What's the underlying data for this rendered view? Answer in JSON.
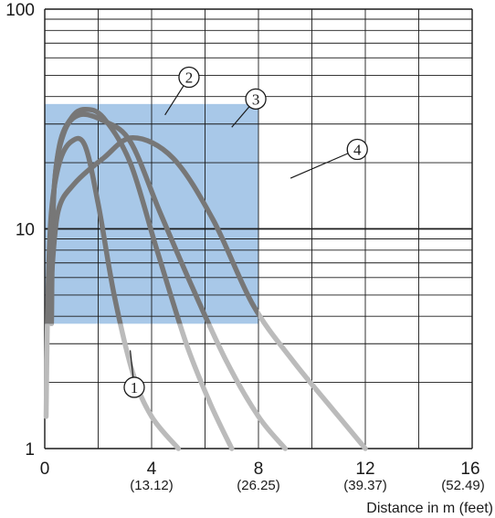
{
  "chart_data": {
    "type": "line",
    "title": "",
    "xlabel": "Distance in m (feet)",
    "ylabel": "",
    "x_scale": "linear",
    "y_scale": "log",
    "xlim": [
      0,
      16
    ],
    "ylim": [
      1,
      100
    ],
    "grid": true,
    "x_ticks": [
      {
        "value": 0,
        "label": "0",
        "sub": ""
      },
      {
        "value": 4,
        "label": "4",
        "sub": "(13.12)"
      },
      {
        "value": 8,
        "label": "8",
        "sub": "(26.25)"
      },
      {
        "value": 12,
        "label": "12",
        "sub": "(39.37)"
      },
      {
        "value": 16,
        "label": "16",
        "sub": "(52.49)"
      }
    ],
    "y_ticks": [
      {
        "value": 1,
        "label": "1"
      },
      {
        "value": 10,
        "label": "10"
      },
      {
        "value": 100,
        "label": "100"
      }
    ],
    "highlight_region": {
      "x": [
        0,
        8
      ],
      "y": [
        3.7,
        37
      ],
      "color": "#a8c8e8"
    },
    "colors": {
      "in_region": "#777777",
      "out_region": "#bbbbbb",
      "grid": "#1a1a1a"
    },
    "series": [
      {
        "callout": "1",
        "callout_at": {
          "x": 3.35,
          "y": 1.9
        },
        "leader_to": {
          "x": 3.2,
          "y": 2.8
        },
        "points": [
          [
            0.05,
            1.4
          ],
          [
            0.12,
            5
          ],
          [
            0.25,
            12
          ],
          [
            0.55,
            20
          ],
          [
            1.0,
            25
          ],
          [
            1.5,
            24
          ],
          [
            2.0,
            13
          ],
          [
            2.6,
            5
          ],
          [
            3.3,
            2.2
          ],
          [
            4.0,
            1.4
          ],
          [
            5.0,
            1.0
          ]
        ]
      },
      {
        "callout": "2",
        "callout_at": {
          "x": 5.4,
          "y": 49
        },
        "leader_to": {
          "x": 4.5,
          "y": 33
        },
        "points": [
          [
            0.25,
            3.7
          ],
          [
            0.3,
            12
          ],
          [
            0.55,
            24
          ],
          [
            1.0,
            32
          ],
          [
            1.5,
            35
          ],
          [
            2.2,
            32
          ],
          [
            3.2,
            20
          ],
          [
            4.2,
            8
          ],
          [
            5.3,
            3.0
          ],
          [
            6.2,
            1.6
          ],
          [
            7.0,
            1.0
          ]
        ]
      },
      {
        "callout": "3",
        "callout_at": {
          "x": 7.9,
          "y": 39
        },
        "leader_to": {
          "x": 7.0,
          "y": 29
        },
        "points": [
          [
            0.25,
            3.7
          ],
          [
            0.35,
            15
          ],
          [
            0.7,
            27
          ],
          [
            1.3,
            33
          ],
          [
            2.2,
            31
          ],
          [
            3.2,
            25
          ],
          [
            4.3,
            12
          ],
          [
            5.5,
            5.5
          ],
          [
            6.8,
            2.5
          ],
          [
            8.0,
            1.4
          ],
          [
            9.0,
            1.0
          ]
        ]
      },
      {
        "callout": "4",
        "callout_at": {
          "x": 11.7,
          "y": 23
        },
        "leader_to": {
          "x": 9.2,
          "y": 17
        },
        "points": [
          [
            0.25,
            6
          ],
          [
            0.5,
            12
          ],
          [
            1.1,
            16
          ],
          [
            2.2,
            21
          ],
          [
            3.3,
            26
          ],
          [
            4.8,
            21
          ],
          [
            6.3,
            11
          ],
          [
            7.8,
            4.5
          ],
          [
            9.3,
            2.5
          ],
          [
            10.8,
            1.5
          ],
          [
            12.0,
            1.0
          ]
        ]
      }
    ]
  }
}
